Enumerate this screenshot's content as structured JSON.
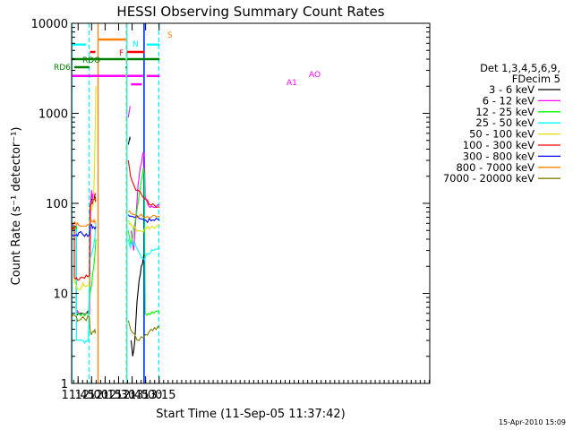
{
  "chart_data": {
    "type": "line",
    "title": "HESSI Observing Summary Count Rates",
    "xlabel": "Start Time (11-Sep-05 11:37:42)",
    "ylabel": "Count Rate (s⁻¹ detector⁻¹)",
    "y_scale": "log",
    "ylim": [
      1,
      10000
    ],
    "xlim_minutes": [
      11.63,
      18.26
    ],
    "x_ticks": [
      "11:45",
      "12:00",
      "12:15",
      "12:30",
      "12:45",
      "13:00",
      "13:15"
    ],
    "y_ticks": [
      "1",
      "10",
      "100",
      "1000",
      "10000"
    ],
    "legend_header": [
      "Det 1,3,4,5,6,9,",
      "FDecim 5"
    ],
    "footer_date": "15-Apr-2010 15:09",
    "series": [
      {
        "name": "3 - 6 keV",
        "color": "#000000",
        "points": [
          [
            11.63,
            55
          ],
          [
            11.72,
            55
          ],
          [
            11.72,
            6
          ],
          [
            11.76,
            6
          ],
          [
            11.78,
            6
          ],
          [
            11.84,
            6
          ],
          [
            11.9,
            6
          ],
          [
            11.96,
            6
          ],
          [
            11.98,
            95
          ],
          [
            12.0,
            110
          ],
          [
            12.02,
            120
          ],
          [
            12.04,
            115
          ],
          [
            12.06,
            120
          ],
          [
            12.07,
            118
          ],
          [
            12.08,
            null
          ],
          [
            12.66,
            null
          ],
          [
            12.68,
            450
          ],
          [
            12.7,
            520
          ],
          [
            12.71,
            550
          ],
          [
            12.72,
            null
          ],
          [
            12.73,
            3
          ],
          [
            12.76,
            2
          ],
          [
            12.8,
            3
          ],
          [
            12.84,
            8
          ],
          [
            12.88,
            14
          ],
          [
            12.92,
            20
          ],
          [
            12.96,
            25
          ],
          [
            12.98,
            26
          ],
          [
            12.99,
            null
          ]
        ]
      },
      {
        "name": "6 - 12 keV",
        "color": "#ff00ff",
        "points": [
          [
            11.63,
            55
          ],
          [
            11.72,
            55
          ],
          [
            11.72,
            6
          ],
          [
            11.76,
            6
          ],
          [
            11.84,
            6
          ],
          [
            11.9,
            6
          ],
          [
            11.96,
            6
          ],
          [
            11.98,
            100
          ],
          [
            12.0,
            140
          ],
          [
            12.02,
            110
          ],
          [
            12.04,
            130
          ],
          [
            12.06,
            120
          ],
          [
            12.07,
            130
          ],
          [
            12.08,
            null
          ],
          [
            12.66,
            null
          ],
          [
            12.68,
            900
          ],
          [
            12.7,
            1100
          ],
          [
            12.71,
            1200
          ],
          [
            12.72,
            null
          ],
          [
            12.73,
            50
          ],
          [
            12.78,
            30
          ],
          [
            12.82,
            70
          ],
          [
            12.86,
            160
          ],
          [
            12.9,
            250
          ],
          [
            12.94,
            330
          ],
          [
            12.97,
            360
          ],
          [
            12.98,
            330
          ],
          [
            12.99,
            120
          ],
          [
            13.05,
            95
          ],
          [
            13.15,
            90
          ],
          [
            13.26,
            95
          ],
          [
            13.26,
            null
          ]
        ]
      },
      {
        "name": "12 - 25 keV",
        "color": "#00ff00",
        "points": [
          [
            11.63,
            55
          ],
          [
            11.72,
            55
          ],
          [
            11.72,
            6
          ],
          [
            11.76,
            6
          ],
          [
            11.84,
            6
          ],
          [
            11.9,
            6
          ],
          [
            11.94,
            6
          ],
          [
            11.97,
            10
          ],
          [
            12.0,
            12
          ],
          [
            12.03,
            18
          ],
          [
            12.06,
            26
          ],
          [
            12.08,
            40
          ],
          [
            12.09,
            null
          ],
          [
            12.66,
            null
          ],
          [
            12.68,
            50
          ],
          [
            12.72,
            35
          ],
          [
            12.76,
            42
          ],
          [
            12.8,
            60
          ],
          [
            12.86,
            100
          ],
          [
            12.92,
            180
          ],
          [
            12.96,
            250
          ],
          [
            12.98,
            210
          ],
          [
            12.99,
            6
          ],
          [
            13.05,
            6
          ],
          [
            13.15,
            6
          ],
          [
            13.26,
            6
          ],
          [
            13.26,
            null
          ]
        ]
      },
      {
        "name": "25 - 50 keV",
        "color": "#00ffff",
        "points": [
          [
            11.63,
            50
          ],
          [
            11.72,
            50
          ],
          [
            11.72,
            3
          ],
          [
            11.76,
            3
          ],
          [
            11.84,
            3
          ],
          [
            11.9,
            3
          ],
          [
            11.94,
            3
          ],
          [
            11.97,
            25
          ],
          [
            12.0,
            28
          ],
          [
            12.03,
            32
          ],
          [
            12.06,
            40
          ],
          [
            12.08,
            60
          ],
          [
            12.09,
            null
          ],
          [
            12.66,
            null
          ],
          [
            12.68,
            40
          ],
          [
            12.72,
            32
          ],
          [
            12.76,
            38
          ],
          [
            12.8,
            36
          ],
          [
            12.86,
            30
          ],
          [
            12.92,
            25
          ],
          [
            12.98,
            24
          ],
          [
            12.99,
            25
          ],
          [
            13.05,
            27
          ],
          [
            13.15,
            30
          ],
          [
            13.26,
            32
          ],
          [
            13.26,
            null
          ]
        ]
      },
      {
        "name": "50 - 100 keV",
        "color": "#e0e000",
        "points": [
          [
            11.63,
            55
          ],
          [
            11.68,
            55
          ],
          [
            11.68,
            13
          ],
          [
            11.72,
            12
          ],
          [
            11.76,
            11
          ],
          [
            11.84,
            13
          ],
          [
            11.9,
            12
          ],
          [
            11.96,
            12
          ],
          [
            11.97,
            90
          ],
          [
            12.0,
            85
          ],
          [
            12.03,
            95
          ],
          [
            12.05,
            200
          ],
          [
            12.07,
            800
          ],
          [
            12.08,
            2000
          ],
          [
            12.09,
            null
          ],
          [
            12.66,
            null
          ],
          [
            12.68,
            65
          ],
          [
            12.72,
            60
          ],
          [
            12.8,
            55
          ],
          [
            12.88,
            50
          ],
          [
            12.96,
            48
          ],
          [
            13.0,
            52
          ],
          [
            13.1,
            55
          ],
          [
            13.26,
            58
          ],
          [
            13.26,
            null
          ]
        ]
      },
      {
        "name": "100 - 300 keV",
        "color": "#ff0000",
        "points": [
          [
            11.63,
            55
          ],
          [
            11.68,
            55
          ],
          [
            11.68,
            15
          ],
          [
            11.72,
            15
          ],
          [
            11.76,
            14
          ],
          [
            11.84,
            15
          ],
          [
            11.9,
            16
          ],
          [
            11.96,
            16
          ],
          [
            11.97,
            95
          ],
          [
            12.0,
            100
          ],
          [
            12.03,
            110
          ],
          [
            12.06,
            115
          ],
          [
            12.08,
            110
          ],
          [
            12.09,
            null
          ],
          [
            12.66,
            null
          ],
          [
            12.68,
            300
          ],
          [
            12.72,
            200
          ],
          [
            12.78,
            160
          ],
          [
            12.86,
            140
          ],
          [
            12.94,
            120
          ],
          [
            13.0,
            110
          ],
          [
            13.1,
            95
          ],
          [
            13.2,
            90
          ],
          [
            13.26,
            90
          ],
          [
            13.26,
            null
          ]
        ]
      },
      {
        "name": "300 - 800 keV",
        "color": "#0000ff",
        "points": [
          [
            11.63,
            45
          ],
          [
            11.72,
            45
          ],
          [
            11.76,
            47
          ],
          [
            11.84,
            45
          ],
          [
            11.9,
            46
          ],
          [
            11.96,
            45
          ],
          [
            11.97,
            60
          ],
          [
            12.0,
            58
          ],
          [
            12.03,
            55
          ],
          [
            12.06,
            52
          ],
          [
            12.08,
            55
          ],
          [
            12.09,
            null
          ],
          [
            12.66,
            null
          ],
          [
            12.68,
            75
          ],
          [
            12.72,
            72
          ],
          [
            12.8,
            70
          ],
          [
            12.88,
            68
          ],
          [
            12.96,
            66
          ],
          [
            13.0,
            65
          ],
          [
            13.1,
            64
          ],
          [
            13.26,
            65
          ],
          [
            13.26,
            null
          ]
        ]
      },
      {
        "name": "800 - 7000 keV",
        "color": "#ff8000",
        "points": [
          [
            11.63,
            60
          ],
          [
            11.72,
            58
          ],
          [
            11.76,
            57
          ],
          [
            11.84,
            56
          ],
          [
            11.9,
            56
          ],
          [
            11.96,
            57
          ],
          [
            11.97,
            65
          ],
          [
            12.0,
            63
          ],
          [
            12.03,
            62
          ],
          [
            12.06,
            61
          ],
          [
            12.08,
            62
          ],
          [
            12.09,
            null
          ],
          [
            12.66,
            null
          ],
          [
            12.68,
            80
          ],
          [
            12.72,
            78
          ],
          [
            12.8,
            75
          ],
          [
            12.88,
            72
          ],
          [
            12.96,
            70
          ],
          [
            13.0,
            70
          ],
          [
            13.1,
            70
          ],
          [
            13.26,
            72
          ],
          [
            13.26,
            null
          ]
        ]
      },
      {
        "name": "7000 - 20000 keV",
        "color": "#808000",
        "points": [
          [
            11.63,
            5.5
          ],
          [
            11.72,
            5.5
          ],
          [
            11.76,
            5
          ],
          [
            11.84,
            5.5
          ],
          [
            11.9,
            5
          ],
          [
            11.96,
            5.5
          ],
          [
            11.97,
            4
          ],
          [
            12.0,
            3.5
          ],
          [
            12.03,
            3.8
          ],
          [
            12.06,
            4
          ],
          [
            12.08,
            3.6
          ],
          [
            12.09,
            null
          ],
          [
            12.66,
            null
          ],
          [
            12.68,
            5
          ],
          [
            12.72,
            4
          ],
          [
            12.8,
            3.5
          ],
          [
            12.88,
            3
          ],
          [
            12.96,
            3.2
          ],
          [
            13.0,
            3.5
          ],
          [
            13.1,
            4
          ],
          [
            13.26,
            4.2
          ],
          [
            13.26,
            null
          ]
        ]
      }
    ],
    "flag_labels": [
      {
        "text": "N",
        "color": "#00ffff",
        "y": 5800,
        "segments": [
          [
            11.63,
            11.9
          ],
          [
            13.02,
            13.26
          ]
        ]
      },
      {
        "text": "F",
        "color": "#ff0000",
        "y": 4800,
        "segments": [
          [
            11.97,
            12.07
          ],
          [
            12.66,
            12.98
          ]
        ]
      },
      {
        "text": "S",
        "color": "#ff8000",
        "y": 6600,
        "segments": [
          [
            12.13,
            12.63
          ]
        ]
      },
      {
        "text": "RDO",
        "color": "#008000",
        "y": 4000,
        "segments": [
          [
            11.63,
            12.63
          ],
          [
            12.66,
            13.26
          ]
        ]
      },
      {
        "text": "RD6",
        "color": "#008000",
        "y": 3250,
        "segments": [
          [
            11.68,
            11.96
          ],
          [
            12.63,
            12.65
          ]
        ]
      },
      {
        "text": "A1",
        "color": "#ff00ff",
        "y": 2600,
        "segments": [
          [
            11.63,
            12.63
          ],
          [
            12.66,
            12.95
          ],
          [
            13.02,
            13.26
          ]
        ]
      },
      {
        "text": "AO",
        "color": "#ff00ff",
        "y": 2100,
        "segments": [
          [
            12.73,
            12.93
          ]
        ]
      }
    ],
    "vertical_lines": [
      {
        "x": 11.635,
        "color": "#00ffff",
        "style": "solid"
      },
      {
        "x": 11.955,
        "color": "#00ffff",
        "style": "dashed"
      },
      {
        "x": 12.12,
        "color": "#ff8000",
        "style": "solid"
      },
      {
        "x": 12.645,
        "color": "#ff8000",
        "style": "dashed"
      },
      {
        "x": 12.655,
        "color": "#00ffff",
        "style": "solid"
      },
      {
        "x": 12.965,
        "color": "#00ffff",
        "style": "solid"
      },
      {
        "x": 12.972,
        "color": "#0000ff",
        "style": "solid"
      },
      {
        "x": 13.245,
        "color": "#00ffff",
        "style": "dashed"
      }
    ]
  }
}
